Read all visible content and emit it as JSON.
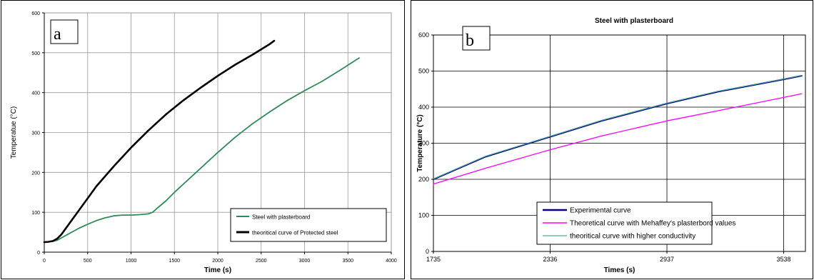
{
  "chart_data": [
    {
      "panel_label": "a",
      "type": "line",
      "title": "",
      "xlabel": "Time (s)",
      "ylabel": "Temperatue (°C)",
      "xlim": [
        0,
        4000
      ],
      "ylim": [
        0,
        600
      ],
      "xticks": [
        "0",
        "500",
        "1000",
        "1500",
        "2000",
        "2500",
        "3000",
        "3500",
        "4000"
      ],
      "yticks": [
        "0",
        "100",
        "200",
        "300",
        "400",
        "500",
        "600"
      ],
      "grid": true,
      "legend_position": "bottom-right",
      "series": [
        {
          "name": "Steel with plasterboard",
          "color": "#2e8b57",
          "x": [
            0,
            100,
            150,
            200,
            300,
            400,
            500,
            600,
            700,
            800,
            900,
            1000,
            1100,
            1200,
            1250,
            1300,
            1400,
            1500,
            1600,
            1800,
            2000,
            2200,
            2400,
            2600,
            2800,
            3000,
            3200,
            3400,
            3630
          ],
          "y": [
            25,
            27,
            30,
            36,
            48,
            60,
            70,
            79,
            86,
            91,
            93,
            93,
            94,
            96,
            100,
            110,
            128,
            150,
            170,
            210,
            250,
            288,
            322,
            352,
            380,
            405,
            428,
            455,
            487
          ]
        },
        {
          "name": "theoritical curve of Protected steel",
          "color": "#000000",
          "x": [
            0,
            50,
            100,
            150,
            200,
            300,
            400,
            500,
            600,
            800,
            1000,
            1200,
            1400,
            1600,
            1800,
            2000,
            2200,
            2400,
            2600,
            2650
          ],
          "y": [
            25,
            26,
            28,
            34,
            45,
            75,
            105,
            135,
            165,
            215,
            262,
            305,
            345,
            380,
            412,
            442,
            470,
            495,
            522,
            530
          ]
        }
      ]
    },
    {
      "panel_label": "b",
      "type": "line",
      "title": "Steel with plasterboard",
      "xlabel": "Times (s)",
      "ylabel": "Temperature (°C)",
      "xlim": [
        1735,
        3650
      ],
      "ylim": [
        0,
        600
      ],
      "xticks": [
        "1735",
        "2336",
        "2937",
        "3538"
      ],
      "yticks": [
        "0",
        "100",
        "200",
        "300",
        "400",
        "500",
        "600"
      ],
      "grid": true,
      "legend_position": "bottom-center",
      "series": [
        {
          "name": "Experimental curve",
          "color": "#000080",
          "x": [
            1735,
            2000,
            2336,
            2600,
            2937,
            3200,
            3538,
            3630
          ],
          "y": [
            200,
            262,
            318,
            362,
            410,
            443,
            477,
            487
          ]
        },
        {
          "name": "Theoretical curve with Mehaffey's plasterbord values",
          "color": "#ff00ff",
          "x": [
            1735,
            2000,
            2336,
            2600,
            2937,
            3200,
            3538,
            3630
          ],
          "y": [
            187,
            230,
            282,
            320,
            362,
            390,
            427,
            437
          ]
        },
        {
          "name": "theoritical curve with higher conductivity",
          "color": "#40b0a0",
          "x": [
            1735,
            2000,
            2336,
            2600,
            2937,
            3200,
            3538,
            3630
          ],
          "y": [
            201,
            263,
            319,
            363,
            411,
            444,
            478,
            488
          ]
        }
      ]
    }
  ]
}
